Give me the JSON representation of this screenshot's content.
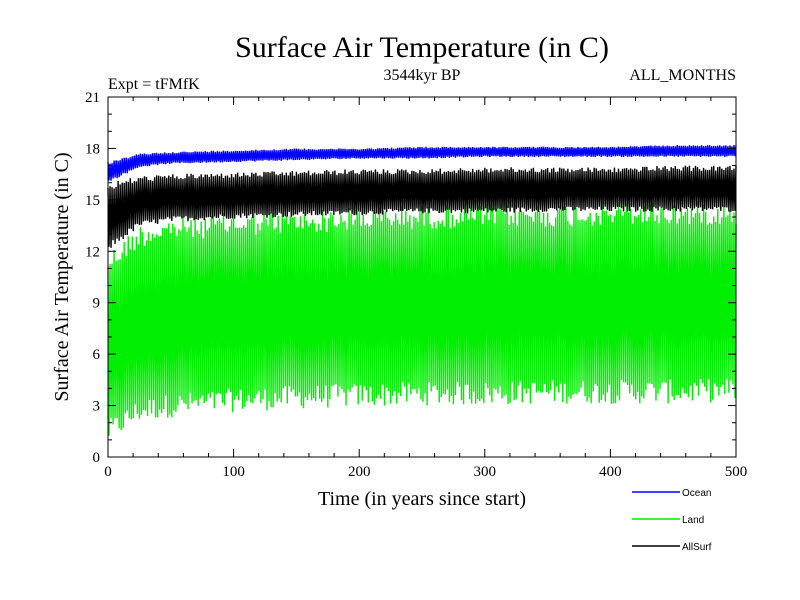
{
  "chart_data": {
    "type": "line",
    "title": "Surface Air Temperature (in C)",
    "subtitle": "3544kyr BP",
    "experiment_label": "Expt = tFMfK",
    "period_label": "ALL_MONTHS",
    "xlabel": "Time (in years since start)",
    "ylabel": "Surface Air Temperature (in C)",
    "xlim": [
      0,
      500
    ],
    "ylim": [
      0,
      21
    ],
    "xticks": [
      0,
      100,
      200,
      300,
      400,
      500
    ],
    "yticks": [
      0,
      3,
      6,
      9,
      12,
      15,
      18,
      21
    ],
    "grid": false,
    "legend_position": "bottom-right",
    "series": [
      {
        "name": "Ocean",
        "color": "#0000ff",
        "x": [
          0,
          25,
          50,
          100,
          150,
          200,
          250,
          300,
          350,
          400,
          450,
          500
        ],
        "lower": [
          16.0,
          16.9,
          17.1,
          17.2,
          17.3,
          17.4,
          17.4,
          17.5,
          17.5,
          17.5,
          17.5,
          17.5
        ],
        "upper": [
          17.2,
          17.7,
          17.8,
          17.9,
          18.0,
          18.0,
          18.1,
          18.1,
          18.1,
          18.1,
          18.2,
          18.2
        ]
      },
      {
        "name": "Land",
        "color": "#00ee00",
        "x": [
          0,
          25,
          50,
          100,
          150,
          200,
          250,
          300,
          350,
          400,
          450,
          500
        ],
        "lower": [
          0.8,
          2.0,
          2.3,
          2.6,
          2.8,
          2.9,
          3.0,
          3.0,
          3.1,
          3.1,
          3.1,
          3.2
        ],
        "upper": [
          12.0,
          13.6,
          14.0,
          14.3,
          14.4,
          14.6,
          14.7,
          14.8,
          14.8,
          14.9,
          14.9,
          15.0
        ]
      },
      {
        "name": "AllSurf",
        "color": "#000000",
        "x": [
          0,
          25,
          50,
          100,
          150,
          200,
          250,
          300,
          350,
          400,
          450,
          500
        ],
        "lower": [
          12.0,
          13.4,
          13.7,
          13.9,
          14.0,
          14.1,
          14.2,
          14.2,
          14.3,
          14.3,
          14.3,
          14.3
        ],
        "upper": [
          16.0,
          16.4,
          16.5,
          16.6,
          16.7,
          16.8,
          16.8,
          16.9,
          16.9,
          16.9,
          17.0,
          17.0
        ]
      }
    ]
  }
}
